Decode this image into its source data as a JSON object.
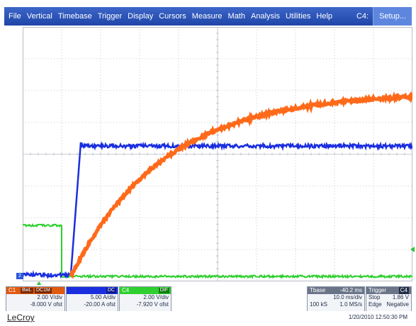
{
  "menu": {
    "items": [
      "File",
      "Vertical",
      "Timebase",
      "Trigger",
      "Display",
      "Cursors",
      "Measure",
      "Math",
      "Analysis",
      "Utilities",
      "Help"
    ],
    "channel_indicator": "C4:",
    "setup_label": "Setup..."
  },
  "colors": {
    "menu_bg": "#2a52b8",
    "c1": "#ff6a1a",
    "c2": "#1a2ee0",
    "c4": "#2ecf2e",
    "grid": "#b8bcc4"
  },
  "channels": [
    {
      "id": "C1",
      "tags": [
        "BwL",
        "DC1M"
      ],
      "vdiv": "2.00 V/div",
      "offset": "-8.000 V ofst"
    },
    {
      "id": "C2",
      "tags": [
        "DC"
      ],
      "vdiv": "5.00 A/div",
      "offset": "-20.00 A ofst"
    },
    {
      "id": "C4",
      "tags": [
        "DIF"
      ],
      "vdiv": "2.00 V/div",
      "offset": "-7.920 V ofst"
    }
  ],
  "timebase": {
    "label": "Tbase",
    "delay": "-40.2 ms",
    "tdiv": "10.0 ms/div",
    "samples": "100 kS",
    "rate": "1.0 MS/s"
  },
  "trigger": {
    "label": "Trigger",
    "channel": "C4",
    "mode": "Stop",
    "level": "1.86 V",
    "type": "Edge",
    "slope": "Negative"
  },
  "footer": {
    "brand": "LeCroy",
    "timestamp": "1/20/2010 12:50:30 PM"
  },
  "markers": {
    "ground_label": "2"
  }
}
